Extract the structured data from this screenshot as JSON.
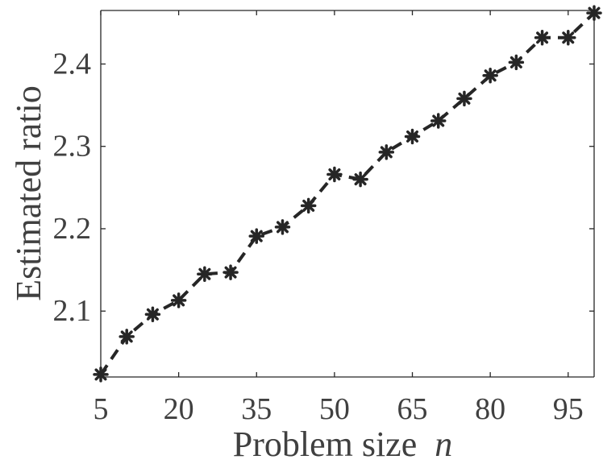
{
  "chart_data": {
    "type": "line",
    "title": "",
    "xlabel": "Problem size",
    "xlabel_var": "n",
    "ylabel": "Estimated ratio",
    "xlim": [
      5,
      100
    ],
    "ylim": [
      2.02,
      2.465
    ],
    "xticks": [
      5,
      20,
      35,
      50,
      65,
      80,
      95
    ],
    "xtick_labels": [
      "5",
      "20",
      "35",
      "50",
      "65",
      "80",
      "95"
    ],
    "yticks": [
      2.1,
      2.2,
      2.3,
      2.4
    ],
    "ytick_labels": [
      "2.1",
      "2.2",
      "2.3",
      "2.4"
    ],
    "grid": false,
    "series": [
      {
        "line_style": "dashed",
        "marker": "asterisk",
        "color": "#262626",
        "x": [
          5,
          10,
          15,
          20,
          25,
          30,
          35,
          40,
          45,
          50,
          55,
          60,
          65,
          70,
          75,
          80,
          85,
          90,
          95,
          100
        ],
        "y": [
          2.023,
          2.069,
          2.096,
          2.113,
          2.145,
          2.147,
          2.191,
          2.202,
          2.228,
          2.266,
          2.26,
          2.293,
          2.312,
          2.331,
          2.358,
          2.386,
          2.402,
          2.432,
          2.432,
          2.462
        ]
      }
    ]
  }
}
